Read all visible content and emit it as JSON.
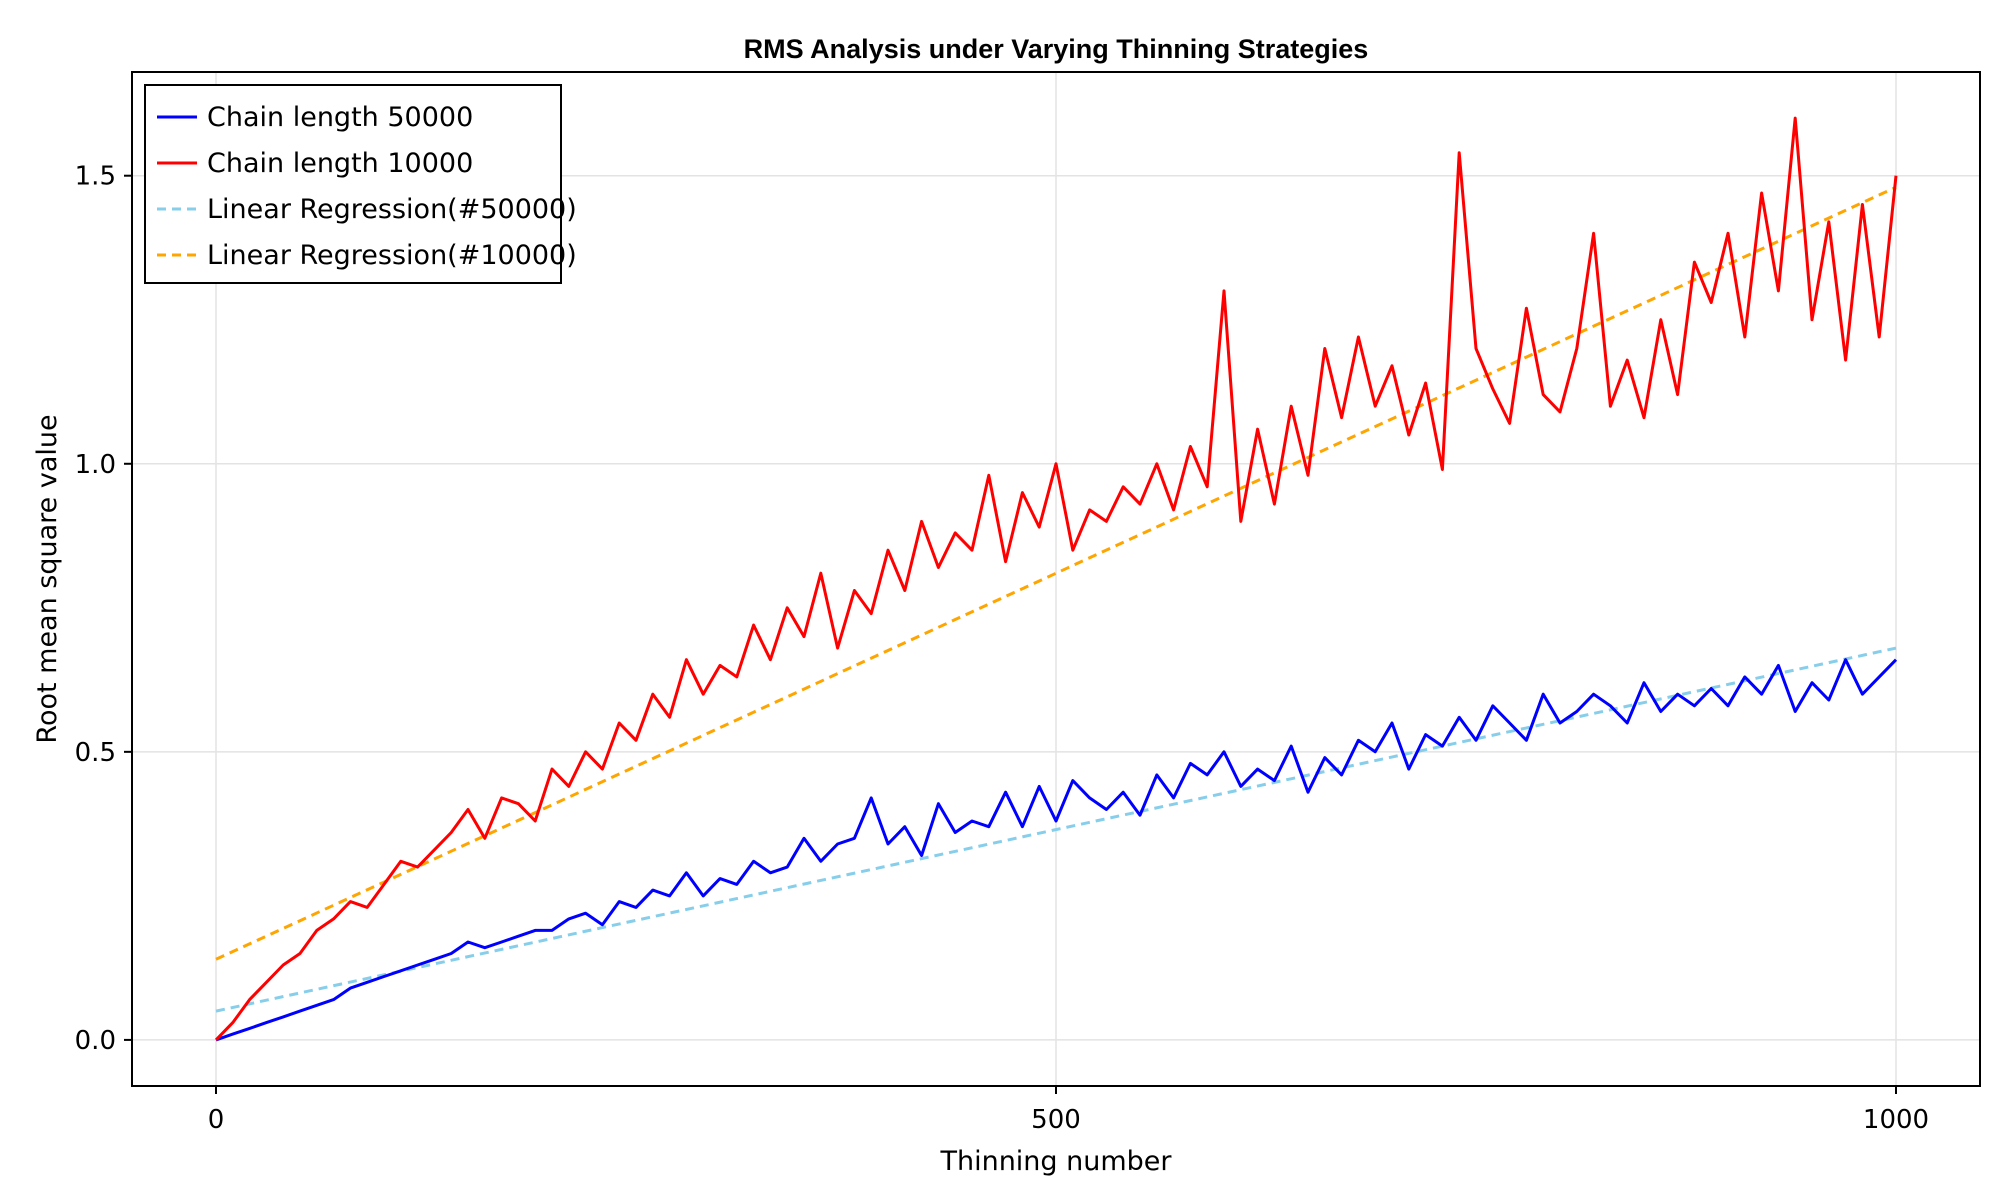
{
  "chart_data": {
    "type": "line",
    "title": "RMS Analysis under Varying Thinning Strategies",
    "xlabel": "Thinning number",
    "ylabel": "Root mean square value",
    "xlim": [
      -50,
      1050
    ],
    "ylim": [
      -0.08,
      1.68
    ],
    "x_ticks": [
      0,
      500,
      1000
    ],
    "x_tick_labels": [
      "0",
      "500",
      "1000"
    ],
    "y_ticks": [
      0.0,
      0.5,
      1.0,
      1.5
    ],
    "y_tick_labels": [
      "0.0",
      "0.5",
      "1.0",
      "1.5"
    ],
    "grid": true,
    "legend_position": "top-left",
    "series": [
      {
        "name": "Chain length 50000",
        "color": "#0000ff",
        "style": "solid",
        "x": [
          0,
          10,
          20,
          30,
          40,
          50,
          60,
          70,
          80,
          90,
          100,
          110,
          120,
          130,
          140,
          150,
          160,
          170,
          180,
          190,
          200,
          210,
          220,
          230,
          240,
          250,
          260,
          270,
          280,
          290,
          300,
          310,
          320,
          330,
          340,
          350,
          360,
          370,
          380,
          390,
          400,
          410,
          420,
          430,
          440,
          450,
          460,
          470,
          480,
          490,
          500,
          510,
          520,
          530,
          540,
          550,
          560,
          570,
          580,
          590,
          600,
          610,
          620,
          630,
          640,
          650,
          660,
          670,
          680,
          690,
          700,
          710,
          720,
          730,
          740,
          750,
          760,
          770,
          780,
          790,
          800,
          810,
          820,
          830,
          840,
          850,
          860,
          870,
          880,
          890,
          900,
          910,
          920,
          930,
          940,
          950,
          960,
          970,
          980,
          990,
          1000
        ],
        "y": [
          0.0,
          0.01,
          0.02,
          0.03,
          0.04,
          0.05,
          0.06,
          0.07,
          0.09,
          0.1,
          0.11,
          0.12,
          0.13,
          0.14,
          0.15,
          0.17,
          0.16,
          0.17,
          0.18,
          0.19,
          0.19,
          0.21,
          0.22,
          0.2,
          0.24,
          0.23,
          0.26,
          0.25,
          0.29,
          0.25,
          0.28,
          0.27,
          0.31,
          0.29,
          0.3,
          0.35,
          0.31,
          0.34,
          0.35,
          0.42,
          0.34,
          0.37,
          0.32,
          0.41,
          0.36,
          0.38,
          0.37,
          0.43,
          0.37,
          0.44,
          0.38,
          0.45,
          0.42,
          0.4,
          0.43,
          0.39,
          0.46,
          0.42,
          0.48,
          0.46,
          0.5,
          0.44,
          0.47,
          0.45,
          0.51,
          0.43,
          0.49,
          0.46,
          0.52,
          0.5,
          0.55,
          0.47,
          0.53,
          0.51,
          0.56,
          0.52,
          0.58,
          0.55,
          0.52,
          0.6,
          0.55,
          0.57,
          0.6,
          0.58,
          0.55,
          0.62,
          0.57,
          0.6,
          0.58,
          0.61,
          0.58,
          0.63,
          0.6,
          0.65,
          0.57,
          0.62,
          0.59,
          0.66,
          0.6,
          0.63,
          0.66
        ]
      },
      {
        "name": "Chain length 10000",
        "color": "#ff0000",
        "style": "solid",
        "x": [
          0,
          10,
          20,
          30,
          40,
          50,
          60,
          70,
          80,
          90,
          100,
          110,
          120,
          130,
          140,
          150,
          160,
          170,
          180,
          190,
          200,
          210,
          220,
          230,
          240,
          250,
          260,
          270,
          280,
          290,
          300,
          310,
          320,
          330,
          340,
          350,
          360,
          370,
          380,
          390,
          400,
          410,
          420,
          430,
          440,
          450,
          460,
          470,
          480,
          490,
          500,
          510,
          520,
          530,
          540,
          550,
          560,
          570,
          580,
          590,
          600,
          610,
          620,
          630,
          640,
          650,
          660,
          670,
          680,
          690,
          700,
          710,
          720,
          730,
          740,
          750,
          760,
          770,
          780,
          790,
          800,
          810,
          820,
          830,
          840,
          850,
          860,
          870,
          880,
          890,
          900,
          910,
          920,
          930,
          940,
          950,
          960,
          970,
          980,
          990,
          1000
        ],
        "y": [
          0.0,
          0.03,
          0.07,
          0.1,
          0.13,
          0.15,
          0.19,
          0.21,
          0.24,
          0.23,
          0.27,
          0.31,
          0.3,
          0.33,
          0.36,
          0.4,
          0.35,
          0.42,
          0.41,
          0.38,
          0.47,
          0.44,
          0.5,
          0.47,
          0.55,
          0.52,
          0.6,
          0.56,
          0.66,
          0.6,
          0.65,
          0.63,
          0.72,
          0.66,
          0.75,
          0.7,
          0.81,
          0.68,
          0.78,
          0.74,
          0.85,
          0.78,
          0.9,
          0.82,
          0.88,
          0.85,
          0.98,
          0.83,
          0.95,
          0.89,
          1.0,
          0.85,
          0.92,
          0.9,
          0.96,
          0.93,
          1.0,
          0.92,
          1.03,
          0.96,
          1.3,
          0.9,
          1.06,
          0.93,
          1.1,
          0.98,
          1.2,
          1.08,
          1.22,
          1.1,
          1.17,
          1.05,
          1.14,
          0.99,
          1.54,
          1.2,
          1.13,
          1.07,
          1.27,
          1.12,
          1.09,
          1.2,
          1.4,
          1.1,
          1.18,
          1.08,
          1.25,
          1.12,
          1.35,
          1.28,
          1.4,
          1.22,
          1.47,
          1.3,
          1.6,
          1.25,
          1.42,
          1.18,
          1.45,
          1.22,
          1.5
        ]
      },
      {
        "name": "Linear Regression(#50000)",
        "color": "#87ceeb",
        "style": "dashed",
        "x": [
          0,
          1000
        ],
        "y": [
          0.05,
          0.68
        ]
      },
      {
        "name": "Linear Regression(#10000)",
        "color": "#ffa500",
        "style": "dashed",
        "x": [
          0,
          1000
        ],
        "y": [
          0.14,
          1.48
        ]
      }
    ]
  }
}
